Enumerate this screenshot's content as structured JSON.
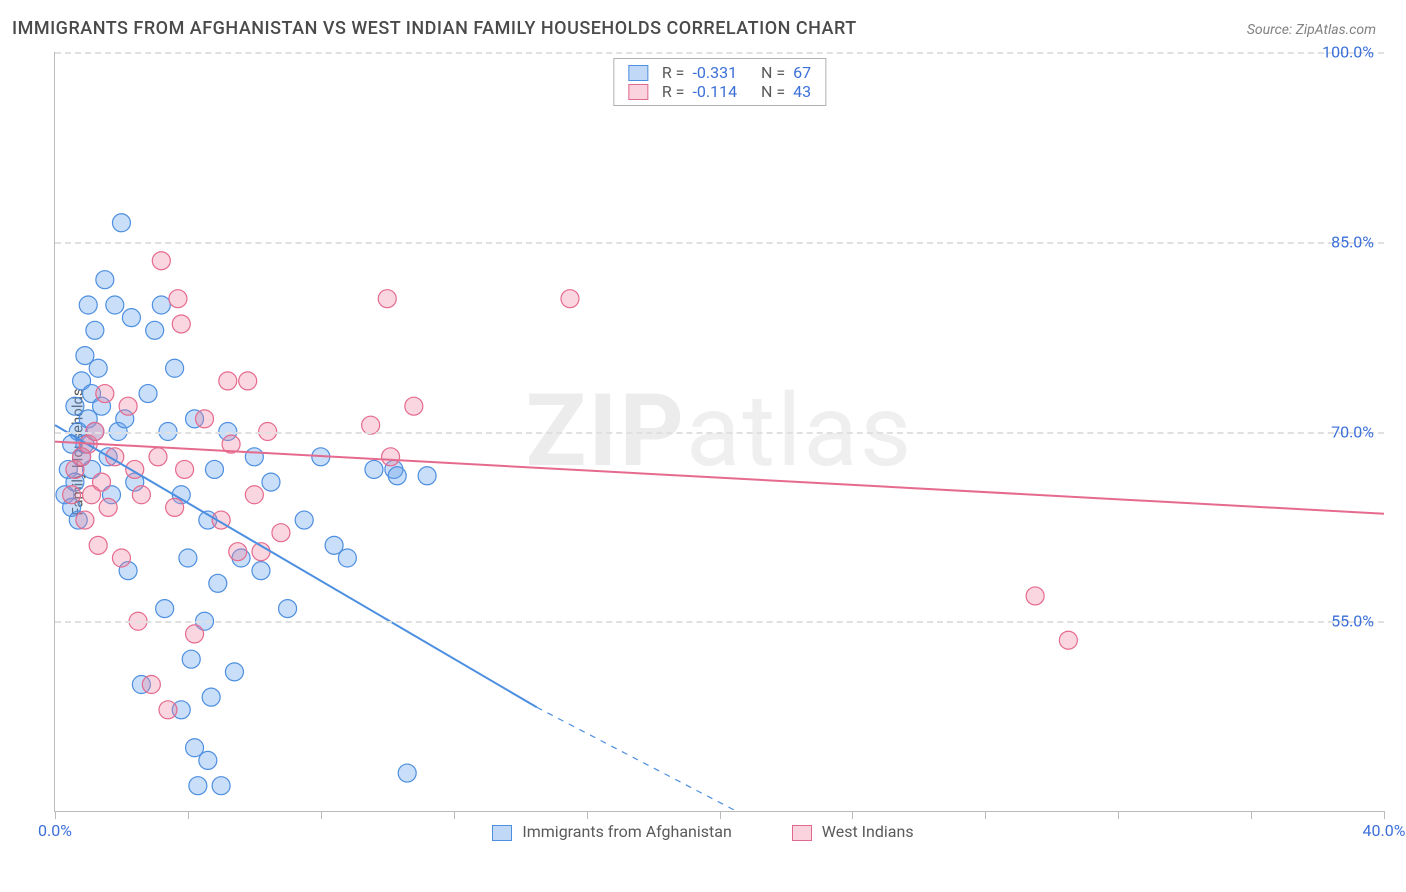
{
  "title": "IMMIGRANTS FROM AFGHANISTAN VS WEST INDIAN FAMILY HOUSEHOLDS CORRELATION CHART",
  "source": "Source: ZipAtlas.com",
  "watermark": {
    "light": "ZIP",
    "bold": "atlas"
  },
  "chart": {
    "type": "scatter-with-regression",
    "background_color": "#ffffff",
    "grid_color": "#e0e0e0",
    "axis_color": "#bbbbbb",
    "tick_label_color": "#3b6fd8",
    "axis_label_color": "#555555",
    "title_color": "#4a4a4a",
    "title_fontsize": 18,
    "tick_fontsize": 16,
    "ylabel": "Family Households",
    "ylabel_fontsize": 15,
    "xlim": [
      0,
      40
    ],
    "ylim": [
      40,
      100
    ],
    "y_ticks": [
      55,
      70,
      85,
      100
    ],
    "y_tick_labels": [
      "55.0%",
      "70.0%",
      "85.0%",
      "100.0%"
    ],
    "x_ticks": [
      0,
      4,
      8,
      12,
      16,
      20,
      24,
      28,
      32,
      36,
      40
    ],
    "x_tick_labels": {
      "first": "0.0%",
      "last": "40.0%"
    },
    "marker_radius": 9,
    "marker_stroke_width": 1.2,
    "marker_fill_opacity": 0.32,
    "line_width": 2,
    "series": [
      {
        "name": "Immigrants from Afghanistan",
        "color": "#4d8fe0",
        "fill": "rgba(100,160,235,0.35)",
        "R": "-0.331",
        "N": "67",
        "regression": {
          "x1": 0,
          "y1": 70.5,
          "x2_solid": 14.5,
          "y2_solid": 48.2,
          "x2_dash": 20.5,
          "y2_dash": 40
        },
        "points": [
          [
            0.3,
            65
          ],
          [
            0.4,
            67
          ],
          [
            0.5,
            64
          ],
          [
            0.5,
            69
          ],
          [
            0.6,
            72
          ],
          [
            0.6,
            66
          ],
          [
            0.7,
            70
          ],
          [
            0.7,
            63
          ],
          [
            0.8,
            68
          ],
          [
            0.8,
            74
          ],
          [
            0.9,
            76
          ],
          [
            0.9,
            69
          ],
          [
            1.0,
            80
          ],
          [
            1.0,
            71
          ],
          [
            1.1,
            67
          ],
          [
            1.1,
            73
          ],
          [
            1.2,
            78
          ],
          [
            1.2,
            70
          ],
          [
            1.3,
            75
          ],
          [
            1.4,
            72
          ],
          [
            1.5,
            82
          ],
          [
            1.6,
            68
          ],
          [
            1.7,
            65
          ],
          [
            1.8,
            80
          ],
          [
            1.9,
            70
          ],
          [
            2.0,
            86.5
          ],
          [
            2.1,
            71
          ],
          [
            2.2,
            59
          ],
          [
            2.3,
            79
          ],
          [
            2.4,
            66
          ],
          [
            2.6,
            50
          ],
          [
            2.8,
            73
          ],
          [
            3.0,
            78
          ],
          [
            3.2,
            80
          ],
          [
            3.3,
            56
          ],
          [
            3.4,
            70
          ],
          [
            3.6,
            75
          ],
          [
            3.8,
            65
          ],
          [
            3.8,
            48
          ],
          [
            4.0,
            60
          ],
          [
            4.1,
            52
          ],
          [
            4.2,
            45
          ],
          [
            4.2,
            71
          ],
          [
            4.3,
            42
          ],
          [
            4.5,
            55
          ],
          [
            4.6,
            44
          ],
          [
            4.6,
            63
          ],
          [
            4.7,
            49
          ],
          [
            4.8,
            67
          ],
          [
            4.9,
            58
          ],
          [
            5.0,
            42
          ],
          [
            5.2,
            70
          ],
          [
            5.4,
            51
          ],
          [
            5.6,
            60
          ],
          [
            6.0,
            68
          ],
          [
            6.2,
            59
          ],
          [
            6.5,
            66
          ],
          [
            7.0,
            56
          ],
          [
            7.5,
            63
          ],
          [
            8.0,
            68
          ],
          [
            8.4,
            61
          ],
          [
            8.8,
            60
          ],
          [
            9.6,
            67
          ],
          [
            10.2,
            67
          ],
          [
            10.3,
            66.5
          ],
          [
            10.6,
            43
          ],
          [
            11.2,
            66.5
          ]
        ]
      },
      {
        "name": "West Indians",
        "color": "#e56a8e",
        "fill": "rgba(240,130,160,0.32)",
        "R": "-0.114",
        "N": "43",
        "regression": {
          "x1": 0,
          "y1": 69.2,
          "x2_solid": 40,
          "y2_solid": 63.5,
          "x2_dash": 40,
          "y2_dash": 63.5
        },
        "points": [
          [
            0.5,
            65
          ],
          [
            0.6,
            67
          ],
          [
            0.8,
            68
          ],
          [
            0.9,
            63
          ],
          [
            1.0,
            69
          ],
          [
            1.1,
            65
          ],
          [
            1.2,
            70
          ],
          [
            1.3,
            61
          ],
          [
            1.4,
            66
          ],
          [
            1.5,
            73
          ],
          [
            1.6,
            64
          ],
          [
            1.8,
            68
          ],
          [
            2.0,
            60
          ],
          [
            2.2,
            72
          ],
          [
            2.4,
            67
          ],
          [
            2.5,
            55
          ],
          [
            2.6,
            65
          ],
          [
            2.9,
            50
          ],
          [
            3.1,
            68
          ],
          [
            3.2,
            83.5
          ],
          [
            3.4,
            48
          ],
          [
            3.6,
            64
          ],
          [
            3.7,
            80.5
          ],
          [
            3.8,
            78.5
          ],
          [
            3.9,
            67
          ],
          [
            4.2,
            54
          ],
          [
            4.5,
            71
          ],
          [
            5.0,
            63
          ],
          [
            5.2,
            74
          ],
          [
            5.3,
            69
          ],
          [
            5.5,
            60.5
          ],
          [
            5.8,
            74
          ],
          [
            6.0,
            65
          ],
          [
            6.2,
            60.5
          ],
          [
            6.4,
            70
          ],
          [
            6.8,
            62
          ],
          [
            9.5,
            70.5
          ],
          [
            10.0,
            80.5
          ],
          [
            10.1,
            68
          ],
          [
            10.8,
            72
          ],
          [
            15.5,
            80.5
          ],
          [
            29.5,
            57
          ],
          [
            30.5,
            53.5
          ]
        ]
      }
    ]
  },
  "legend_top": {
    "R_label": "R =",
    "N_label": "N ="
  },
  "legend_bottom": [
    {
      "swatch": "blue",
      "label_key": "chart.series.0.name"
    },
    {
      "swatch": "pink",
      "label_key": "chart.series.1.name"
    }
  ]
}
